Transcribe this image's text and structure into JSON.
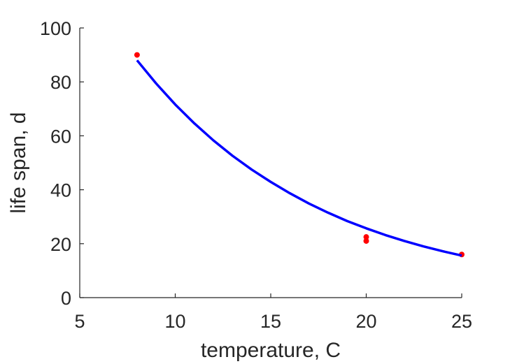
{
  "chart_data": {
    "type": "scatter",
    "title": "",
    "xlabel": "temperature, C",
    "ylabel": "life span, d",
    "xlim": [
      5,
      25
    ],
    "ylim": [
      0,
      100
    ],
    "x_ticks": [
      5,
      10,
      15,
      20,
      25
    ],
    "y_ticks": [
      0,
      20,
      40,
      60,
      80,
      100
    ],
    "grid": false,
    "legend": "none",
    "series": [
      {
        "kind": "points",
        "color": "#ff0000",
        "points": [
          {
            "x": 8,
            "y": 90
          },
          {
            "x": 20,
            "y": 22.5
          },
          {
            "x": 20,
            "y": 21
          },
          {
            "x": 25,
            "y": 16
          }
        ]
      },
      {
        "kind": "line",
        "color": "#0000ff",
        "x": [
          8,
          9,
          10,
          11,
          12,
          13,
          14,
          15,
          16,
          17,
          18,
          19,
          20,
          21,
          22,
          23,
          24,
          25
        ],
        "values": [
          88,
          79.4,
          71.6,
          64.6,
          58.3,
          52.6,
          47.5,
          42.9,
          38.7,
          34.9,
          31.5,
          28.4,
          25.7,
          23.2,
          21.0,
          19.0,
          17.2,
          15.6
        ]
      }
    ]
  }
}
